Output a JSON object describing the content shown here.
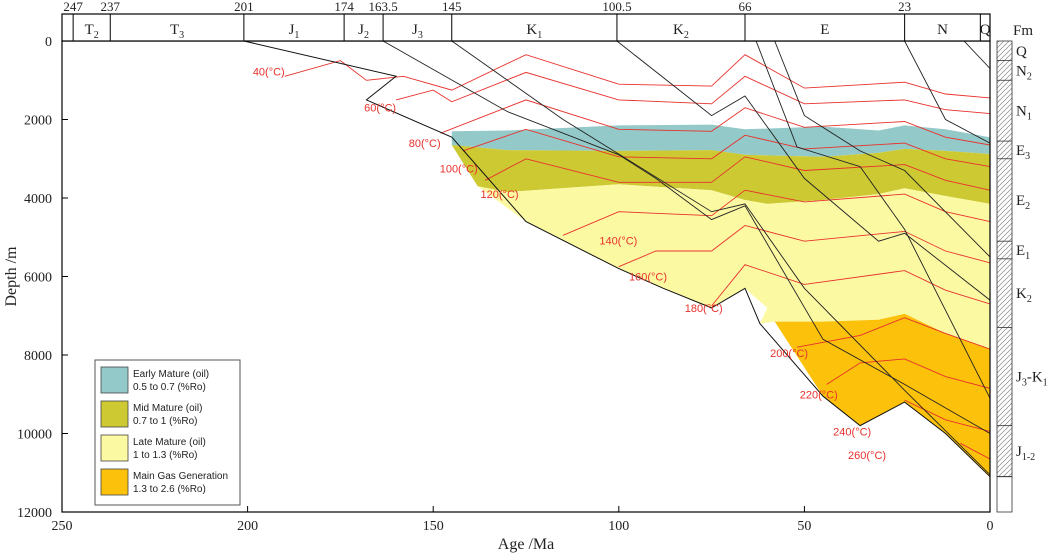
{
  "chart_data": {
    "type": "burial_history",
    "xlabel": "Age /Ma",
    "ylabel": "Depth /m",
    "xlim": [
      250,
      0
    ],
    "ylim": [
      0,
      12000
    ],
    "x_ticks": [
      250,
      200,
      150,
      100,
      50,
      0
    ],
    "y_ticks": [
      0,
      2000,
      4000,
      6000,
      8000,
      10000,
      12000
    ],
    "period_boundaries": [
      {
        "age": 247,
        "label": "247"
      },
      {
        "age": 237,
        "label": "237"
      },
      {
        "age": 201,
        "label": "201"
      },
      {
        "age": 174,
        "label": "174"
      },
      {
        "age": 163.5,
        "label": "163.5"
      },
      {
        "age": 145,
        "label": "145"
      },
      {
        "age": 100.5,
        "label": "100.5"
      },
      {
        "age": 66,
        "label": "66"
      },
      {
        "age": 23,
        "label": "23"
      }
    ],
    "periods": [
      {
        "main": "T",
        "sub": "2",
        "start": 247,
        "end": 237
      },
      {
        "main": "T",
        "sub": "3",
        "start": 237,
        "end": 201
      },
      {
        "main": "J",
        "sub": "1",
        "start": 201,
        "end": 174
      },
      {
        "main": "J",
        "sub": "2",
        "start": 174,
        "end": 163.5
      },
      {
        "main": "J",
        "sub": "3",
        "start": 163.5,
        "end": 145
      },
      {
        "main": "K",
        "sub": "1",
        "start": 145,
        "end": 100.5
      },
      {
        "main": "K",
        "sub": "2",
        "start": 100.5,
        "end": 66
      },
      {
        "main": "E",
        "sub": "",
        "start": 66,
        "end": 23
      },
      {
        "main": "N",
        "sub": "",
        "start": 23,
        "end": 2.6
      },
      {
        "main": "Q",
        "sub": "",
        "start": 2.6,
        "end": 0
      }
    ],
    "formation_header": "Fm",
    "formations": [
      {
        "main": "Q",
        "sub": "",
        "top": 0,
        "bottom": 500
      },
      {
        "main": "N",
        "sub": "2",
        "top": 500,
        "bottom": 1000
      },
      {
        "main": "N",
        "sub": "1",
        "top": 1000,
        "bottom": 2550
      },
      {
        "main": "E",
        "sub": "3",
        "top": 2550,
        "bottom": 3000
      },
      {
        "main": "E",
        "sub": "2",
        "top": 3000,
        "bottom": 5100
      },
      {
        "main": "E",
        "sub": "1",
        "top": 5100,
        "bottom": 5550
      },
      {
        "main": "K",
        "sub": "2",
        "top": 5550,
        "bottom": 7300
      },
      {
        "main": "J",
        "sub": "3",
        "tail": "-K",
        "tailsub": "1",
        "top": 7300,
        "bottom": 9800
      },
      {
        "main": "J",
        "sub": "1-2",
        "top": 9800,
        "bottom": 11100
      }
    ],
    "maturity_zones": [
      {
        "name": "Early Mature (oil)",
        "range": "0.5 to 0.7 (%Ro)",
        "color": "#93c9c8",
        "top": [
          [
            145,
            2300
          ],
          [
            130,
            2280
          ],
          [
            100,
            2150
          ],
          [
            75,
            2130
          ],
          [
            66,
            2250
          ],
          [
            45,
            2180
          ],
          [
            30,
            2280
          ],
          [
            23,
            2150
          ],
          [
            12,
            2250
          ],
          [
            0,
            2450
          ]
        ],
        "bottom": [
          [
            0,
            2880
          ],
          [
            12,
            2800
          ],
          [
            23,
            2750
          ],
          [
            30,
            2850
          ],
          [
            45,
            2950
          ],
          [
            66,
            2900
          ],
          [
            75,
            2780
          ],
          [
            100,
            2800
          ],
          [
            130,
            2780
          ],
          [
            145,
            2650
          ]
        ]
      },
      {
        "name": "Mid Mature (oil)",
        "range": "0.7 to 1 (%Ro)",
        "color": "#cdc933",
        "top": [
          [
            145,
            2650
          ],
          [
            130,
            2780
          ],
          [
            100,
            2800
          ],
          [
            75,
            2780
          ],
          [
            66,
            2900
          ],
          [
            45,
            2950
          ],
          [
            30,
            2850
          ],
          [
            23,
            2750
          ],
          [
            12,
            2800
          ],
          [
            0,
            2880
          ]
        ],
        "bottom": [
          [
            0,
            4150
          ],
          [
            12,
            3950
          ],
          [
            23,
            3750
          ],
          [
            30,
            3900
          ],
          [
            45,
            4050
          ],
          [
            60,
            4150
          ],
          [
            66,
            4050
          ],
          [
            75,
            3800
          ],
          [
            100,
            3650
          ],
          [
            130,
            3850
          ],
          [
            138,
            3700
          ],
          [
            145,
            2650
          ]
        ]
      },
      {
        "name": "Late Mature (oil)",
        "range": "1 to 1.3 (%Ro)",
        "color": "#fcf9a3",
        "top": [
          [
            138,
            3700
          ],
          [
            130,
            3850
          ],
          [
            100,
            3650
          ],
          [
            75,
            3800
          ],
          [
            66,
            4050
          ],
          [
            60,
            4150
          ],
          [
            45,
            4050
          ],
          [
            30,
            3900
          ],
          [
            23,
            3750
          ],
          [
            12,
            3950
          ],
          [
            0,
            4150
          ]
        ],
        "bottom": [
          [
            0,
            7850
          ],
          [
            12,
            7450
          ],
          [
            23,
            6950
          ],
          [
            30,
            7100
          ],
          [
            45,
            7150
          ],
          [
            53,
            7150
          ],
          [
            58,
            7150
          ],
          [
            62,
            7200
          ],
          [
            60,
            6800
          ],
          [
            66,
            6300
          ],
          [
            75,
            6800
          ],
          [
            88,
            6300
          ],
          [
            100,
            5800
          ],
          [
            125,
            4600
          ],
          [
            138,
            3700
          ]
        ]
      },
      {
        "name": "Main Gas Generation",
        "range": "1.3 to 2.6 (%Ro)",
        "color": "#fcc10a",
        "top": [
          [
            58,
            7150
          ],
          [
            53,
            7150
          ],
          [
            45,
            7150
          ],
          [
            30,
            7100
          ],
          [
            23,
            6950
          ],
          [
            12,
            7450
          ],
          [
            0,
            7850
          ]
        ],
        "bottom": [
          [
            0,
            11100
          ],
          [
            12,
            10000
          ],
          [
            23,
            9200
          ],
          [
            35,
            9800
          ],
          [
            45,
            9050
          ],
          [
            58,
            7150
          ]
        ]
      }
    ],
    "basin_outline": [
      [
        201,
        0
      ],
      [
        160,
        900
      ],
      [
        168,
        1500
      ],
      [
        145,
        2450
      ],
      [
        125,
        4600
      ],
      [
        100,
        5800
      ],
      [
        88,
        6300
      ],
      [
        75,
        6800
      ],
      [
        66,
        6300
      ],
      [
        62,
        7200
      ],
      [
        45,
        9050
      ],
      [
        35,
        9800
      ],
      [
        23,
        9200
      ],
      [
        12,
        10000
      ],
      [
        0,
        11100
      ]
    ],
    "burial_lines": [
      [
        [
          163.5,
          0
        ],
        [
          130,
          1800
        ],
        [
          100,
          2900
        ],
        [
          90,
          3500
        ],
        [
          75,
          4550
        ],
        [
          66,
          4200
        ],
        [
          45,
          7600
        ],
        [
          23,
          8750
        ],
        [
          0,
          10000
        ]
      ],
      [
        [
          145,
          0
        ],
        [
          115,
          2000
        ],
        [
          75,
          4350
        ],
        [
          66,
          4150
        ],
        [
          50,
          6300
        ],
        [
          23,
          8900
        ],
        [
          0,
          11050
        ]
      ],
      [
        [
          100.5,
          0
        ],
        [
          75,
          1900
        ],
        [
          66,
          1400
        ],
        [
          50,
          3500
        ],
        [
          30,
          5100
        ],
        [
          23,
          4900
        ],
        [
          0,
          6600
        ]
      ],
      [
        [
          63,
          0
        ],
        [
          52,
          2700
        ],
        [
          35,
          3200
        ],
        [
          23,
          4800
        ],
        [
          0,
          9100
        ]
      ],
      [
        [
          58,
          0
        ],
        [
          50,
          1900
        ],
        [
          35,
          2800
        ],
        [
          23,
          3300
        ],
        [
          0,
          5500
        ]
      ],
      [
        [
          23,
          0
        ],
        [
          12,
          2000
        ],
        [
          0,
          2600
        ]
      ],
      [
        [
          7,
          0
        ],
        [
          0,
          700
        ]
      ]
    ],
    "isotherms": [
      {
        "label": "40(°C)",
        "points": [
          [
            190,
            900
          ],
          [
            175,
            500
          ],
          [
            168,
            1000
          ],
          [
            158,
            900
          ],
          [
            145,
            1250
          ],
          [
            125,
            350
          ],
          [
            100,
            1100
          ],
          [
            75,
            1150
          ],
          [
            66,
            350
          ],
          [
            50,
            1200
          ],
          [
            23,
            1050
          ],
          [
            12,
            1350
          ],
          [
            0,
            1450
          ]
        ]
      },
      {
        "label": "60(°C)",
        "points": [
          [
            160,
            1500
          ],
          [
            150,
            1250
          ],
          [
            145,
            1550
          ],
          [
            125,
            800
          ],
          [
            100,
            1500
          ],
          [
            75,
            1600
          ],
          [
            66,
            900
          ],
          [
            50,
            1600
          ],
          [
            23,
            1500
          ],
          [
            12,
            1750
          ],
          [
            0,
            1850
          ]
        ]
      },
      {
        "label": "80(°C)",
        "points": [
          [
            148,
            2350
          ],
          [
            125,
            1500
          ],
          [
            100,
            2250
          ],
          [
            75,
            2300
          ],
          [
            66,
            1700
          ],
          [
            50,
            2200
          ],
          [
            23,
            2050
          ],
          [
            12,
            2450
          ],
          [
            0,
            2650
          ]
        ]
      },
      {
        "label": "100(°C)",
        "points": [
          [
            142,
            2800
          ],
          [
            125,
            2250
          ],
          [
            100,
            2950
          ],
          [
            75,
            3000
          ],
          [
            66,
            2400
          ],
          [
            50,
            2750
          ],
          [
            23,
            2600
          ],
          [
            12,
            3000
          ],
          [
            0,
            3200
          ]
        ]
      },
      {
        "label": "120(°C)",
        "points": [
          [
            136,
            3550
          ],
          [
            125,
            3000
          ],
          [
            100,
            3600
          ],
          [
            75,
            3600
          ],
          [
            66,
            2950
          ],
          [
            50,
            3300
          ],
          [
            23,
            3150
          ],
          [
            12,
            3550
          ],
          [
            0,
            3800
          ]
        ]
      },
      {
        "label": "140(°C)",
        "points": [
          [
            115,
            4950
          ],
          [
            100,
            4350
          ],
          [
            75,
            4450
          ],
          [
            66,
            3800
          ],
          [
            50,
            4100
          ],
          [
            23,
            3900
          ],
          [
            12,
            4350
          ],
          [
            0,
            4600
          ]
        ]
      },
      {
        "label": "160(°C)",
        "points": [
          [
            100,
            5750
          ],
          [
            90,
            5350
          ],
          [
            75,
            5350
          ],
          [
            66,
            4700
          ],
          [
            50,
            5100
          ],
          [
            23,
            4850
          ],
          [
            12,
            5350
          ],
          [
            0,
            5650
          ]
        ]
      },
      {
        "label": "180(°C)",
        "points": [
          [
            75,
            6750
          ],
          [
            66,
            5700
          ],
          [
            50,
            6200
          ],
          [
            23,
            5850
          ],
          [
            12,
            6350
          ],
          [
            0,
            6700
          ]
        ]
      },
      {
        "label": "200(°C)",
        "points": [
          [
            52,
            7800
          ],
          [
            35,
            7500
          ],
          [
            23,
            7050
          ],
          [
            12,
            7450
          ],
          [
            0,
            7850
          ]
        ]
      },
      {
        "label": "220(°C)",
        "points": [
          [
            44,
            8750
          ],
          [
            35,
            8200
          ],
          [
            23,
            8100
          ],
          [
            12,
            8550
          ],
          [
            0,
            8850
          ]
        ]
      },
      {
        "label": "240(°C)",
        "points": [
          [
            23,
            9150
          ],
          [
            12,
            9650
          ],
          [
            0,
            9950
          ]
        ]
      },
      {
        "label": "260(°C)",
        "points": [
          [
            8,
            10250
          ],
          [
            0,
            10650
          ]
        ]
      }
    ],
    "isotherm_label_positions": [
      [
        190,
        780
      ],
      [
        160,
        1700
      ],
      [
        148,
        2600
      ],
      [
        138,
        3250
      ],
      [
        127,
        3900
      ],
      [
        95,
        5080
      ],
      [
        87,
        6000
      ],
      [
        72,
        6800
      ],
      [
        49,
        7950
      ],
      [
        41,
        9000
      ],
      [
        32,
        9950
      ],
      [
        28,
        10550
      ]
    ],
    "legend": {
      "position": "bottom-left",
      "entries": [
        {
          "name": "Early Mature (oil)",
          "range": "0.5 to 0.7 (%Ro)",
          "color": "#93c9c8"
        },
        {
          "name": "Mid Mature (oil)",
          "range": "0.7 to 1 (%Ro)",
          "color": "#cdc933"
        },
        {
          "name": "Late Mature (oil)",
          "range": "1 to 1.3 (%Ro)",
          "color": "#fcf9a3"
        },
        {
          "name": "Main Gas Generation",
          "range": "1.3 to 2.6 (%Ro)",
          "color": "#fcc10a"
        }
      ]
    },
    "colors": {
      "isotherm": "#e8312c",
      "burial": "#222222",
      "axis": "#000000"
    }
  }
}
